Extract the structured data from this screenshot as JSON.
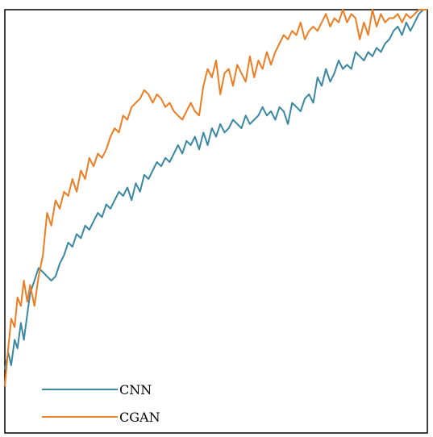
{
  "chart_data": {
    "type": "line",
    "title": "",
    "xlabel": "",
    "ylabel": "",
    "xlim": [
      0,
      1
    ],
    "ylim": [
      0,
      1
    ],
    "grid": false,
    "legend": {
      "position": "bottom-left"
    },
    "colors": {
      "CNN": "#3a88a2",
      "CGAN": "#ee7d21",
      "frame": "#000000"
    },
    "series": [
      {
        "name": "CNN",
        "x": [
          0,
          0.008,
          0.015,
          0.023,
          0.03,
          0.038,
          0.045,
          0.053,
          0.06,
          0.07,
          0.08,
          0.09,
          0.1,
          0.11,
          0.12,
          0.13,
          0.14,
          0.15,
          0.16,
          0.17,
          0.18,
          0.19,
          0.2,
          0.21,
          0.22,
          0.23,
          0.24,
          0.25,
          0.26,
          0.27,
          0.28,
          0.29,
          0.3,
          0.31,
          0.32,
          0.33,
          0.34,
          0.35,
          0.36,
          0.37,
          0.38,
          0.39,
          0.4,
          0.41,
          0.42,
          0.43,
          0.44,
          0.45,
          0.46,
          0.47,
          0.48,
          0.49,
          0.5,
          0.51,
          0.52,
          0.53,
          0.54,
          0.55,
          0.56,
          0.57,
          0.58,
          0.59,
          0.6,
          0.61,
          0.62,
          0.63,
          0.64,
          0.65,
          0.66,
          0.67,
          0.68,
          0.69,
          0.7,
          0.71,
          0.72,
          0.73,
          0.74,
          0.75,
          0.76,
          0.77,
          0.78,
          0.79,
          0.8,
          0.81,
          0.82,
          0.83,
          0.84,
          0.85,
          0.86,
          0.87,
          0.88,
          0.89,
          0.9,
          0.91,
          0.92,
          0.93,
          0.94,
          0.95,
          0.96,
          0.97,
          0.98,
          0.99,
          1.0
        ],
        "y": [
          0.15,
          0.19,
          0.16,
          0.22,
          0.2,
          0.26,
          0.22,
          0.28,
          0.33,
          0.36,
          0.39,
          0.38,
          0.37,
          0.36,
          0.37,
          0.4,
          0.42,
          0.45,
          0.44,
          0.47,
          0.46,
          0.49,
          0.48,
          0.5,
          0.52,
          0.51,
          0.54,
          0.53,
          0.55,
          0.57,
          0.56,
          0.58,
          0.55,
          0.59,
          0.57,
          0.61,
          0.6,
          0.62,
          0.64,
          0.63,
          0.65,
          0.64,
          0.66,
          0.68,
          0.66,
          0.69,
          0.68,
          0.7,
          0.67,
          0.71,
          0.68,
          0.72,
          0.7,
          0.73,
          0.71,
          0.72,
          0.74,
          0.73,
          0.72,
          0.75,
          0.73,
          0.74,
          0.75,
          0.77,
          0.75,
          0.76,
          0.74,
          0.77,
          0.76,
          0.73,
          0.78,
          0.77,
          0.76,
          0.79,
          0.8,
          0.78,
          0.84,
          0.82,
          0.86,
          0.83,
          0.85,
          0.88,
          0.86,
          0.87,
          0.86,
          0.9,
          0.89,
          0.88,
          0.9,
          0.89,
          0.91,
          0.9,
          0.92,
          0.93,
          0.95,
          0.96,
          0.94,
          0.97,
          0.95,
          0.97,
          0.99,
          1.0,
          1.0
        ]
      },
      {
        "name": "CGAN",
        "x": [
          0,
          0.008,
          0.015,
          0.023,
          0.03,
          0.038,
          0.045,
          0.053,
          0.06,
          0.07,
          0.08,
          0.09,
          0.1,
          0.11,
          0.12,
          0.13,
          0.14,
          0.15,
          0.16,
          0.17,
          0.18,
          0.19,
          0.2,
          0.21,
          0.22,
          0.23,
          0.24,
          0.25,
          0.26,
          0.27,
          0.28,
          0.29,
          0.3,
          0.31,
          0.32,
          0.33,
          0.34,
          0.35,
          0.36,
          0.37,
          0.38,
          0.39,
          0.4,
          0.41,
          0.42,
          0.43,
          0.44,
          0.45,
          0.46,
          0.47,
          0.48,
          0.49,
          0.5,
          0.51,
          0.52,
          0.53,
          0.54,
          0.55,
          0.56,
          0.57,
          0.58,
          0.59,
          0.6,
          0.61,
          0.62,
          0.63,
          0.64,
          0.65,
          0.66,
          0.67,
          0.68,
          0.69,
          0.7,
          0.71,
          0.72,
          0.73,
          0.74,
          0.75,
          0.76,
          0.77,
          0.78,
          0.79,
          0.8,
          0.81,
          0.82,
          0.83,
          0.84,
          0.85,
          0.86,
          0.87,
          0.88,
          0.89,
          0.9,
          0.91,
          0.92,
          0.93,
          0.94,
          0.95,
          0.96,
          0.97,
          0.98,
          0.99,
          1.0
        ],
        "y": [
          0.11,
          0.2,
          0.27,
          0.25,
          0.32,
          0.3,
          0.36,
          0.31,
          0.35,
          0.3,
          0.37,
          0.42,
          0.52,
          0.49,
          0.55,
          0.53,
          0.57,
          0.56,
          0.6,
          0.57,
          0.62,
          0.6,
          0.65,
          0.63,
          0.66,
          0.65,
          0.67,
          0.7,
          0.72,
          0.71,
          0.75,
          0.74,
          0.77,
          0.78,
          0.79,
          0.81,
          0.8,
          0.78,
          0.8,
          0.79,
          0.77,
          0.78,
          0.76,
          0.75,
          0.74,
          0.76,
          0.78,
          0.76,
          0.75,
          0.82,
          0.86,
          0.84,
          0.88,
          0.8,
          0.85,
          0.86,
          0.82,
          0.87,
          0.85,
          0.83,
          0.89,
          0.84,
          0.88,
          0.86,
          0.9,
          0.87,
          0.9,
          0.92,
          0.94,
          0.93,
          0.95,
          0.94,
          0.97,
          0.93,
          0.95,
          0.96,
          0.95,
          0.97,
          0.99,
          0.96,
          0.98,
          0.97,
          1.0,
          0.97,
          0.99,
          0.98,
          0.93,
          0.97,
          0.94,
          1.0,
          0.96,
          0.99,
          0.97,
          0.98,
          0.98,
          0.99,
          0.97,
          0.99,
          0.98,
          0.99,
          1.0,
          1.0,
          1.0
        ]
      }
    ]
  }
}
